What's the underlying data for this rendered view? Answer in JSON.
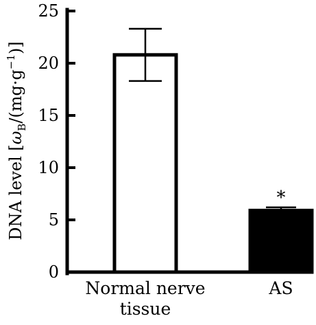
{
  "chart_data": {
    "type": "bar",
    "categories": [
      "Normal nerve tissue",
      "AS"
    ],
    "category_label_lines": [
      [
        "Normal nerve",
        "tissue"
      ],
      [
        "AS"
      ]
    ],
    "values": [
      20.8,
      5.9
    ],
    "errors": [
      2.5,
      0.3
    ],
    "bar_fill": [
      "#ffffff",
      "#000000"
    ],
    "annotations": [
      "",
      "*"
    ],
    "ylabel": "DNA level [ωB/(mg·g⁻¹)]",
    "ylabel_parts": {
      "prefix": "DNA level [",
      "omega": "ω",
      "omega_sub": "B",
      "middle": "/(mg·g",
      "exp": "−1",
      "suffix": ")]"
    },
    "ylim": [
      0,
      25
    ],
    "yticks": [
      "0",
      "5",
      "10",
      "15",
      "20",
      "25"
    ],
    "grid": false,
    "legend": "none"
  }
}
